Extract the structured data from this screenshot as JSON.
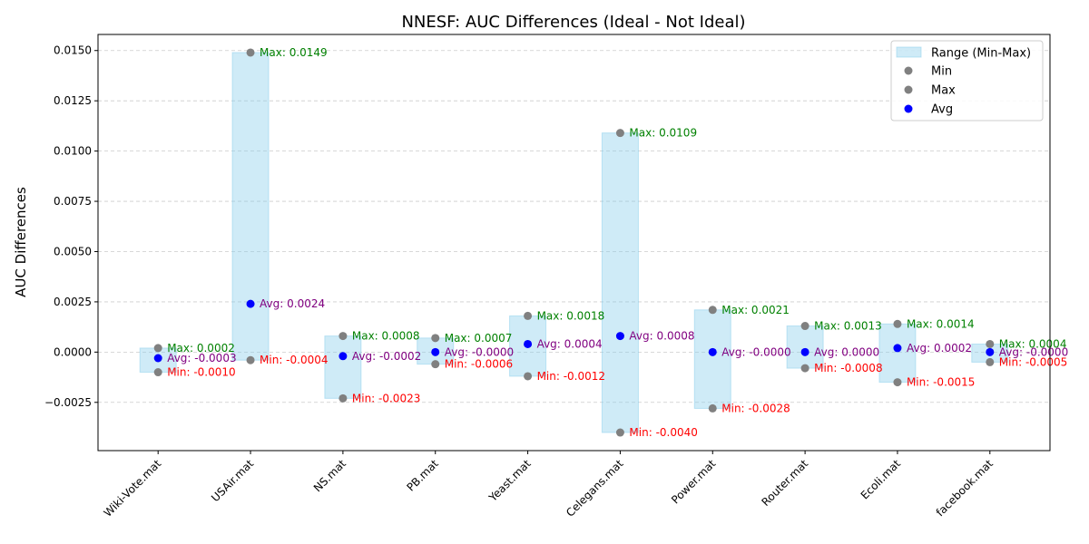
{
  "chart_data": {
    "type": "scatter",
    "title": "NNESF: AUC Differences (Ideal - Not Ideal)",
    "xlabel": "",
    "ylabel": "AUC Differences",
    "categories": [
      "Wiki-Vote.mat",
      "USAir.mat",
      "NS.mat",
      "PB.mat",
      "Yeast.mat",
      "Celegans.mat",
      "Power.mat",
      "Router.mat",
      "Ecoli.mat",
      "facebook.mat"
    ],
    "min": [
      -0.001,
      -0.0004,
      -0.0023,
      -0.0006,
      -0.0012,
      -0.004,
      -0.0028,
      -0.0008,
      -0.0015,
      -0.0005
    ],
    "max": [
      0.0002,
      0.0149,
      0.0008,
      0.0007,
      0.0018,
      0.0109,
      0.0021,
      0.0013,
      0.0014,
      0.0004
    ],
    "avg": [
      -0.0003,
      0.0024,
      -0.0002,
      -0.0,
      0.0004,
      0.0008,
      -0.0,
      0.0,
      0.0002,
      -0.0
    ],
    "min_labels": [
      "Min: -0.0010",
      "Min: -0.0004",
      "Min: -0.0023",
      "Min: -0.0006",
      "Min: -0.0012",
      "Min: -0.0040",
      "Min: -0.0028",
      "Min: -0.0008",
      "Min: -0.0015",
      "Min: -0.0005"
    ],
    "max_labels": [
      "Max: 0.0002",
      "Max: 0.0149",
      "Max: 0.0008",
      "Max: 0.0007",
      "Max: 0.0018",
      "Max: 0.0109",
      "Max: 0.0021",
      "Max: 0.0013",
      "Max: 0.0014",
      "Max: 0.0004"
    ],
    "avg_labels": [
      "Avg: -0.0003",
      "Avg: 0.0024",
      "Avg: -0.0002",
      "Avg: -0.0000",
      "Avg: 0.0004",
      "Avg: 0.0008",
      "Avg: -0.0000",
      "Avg: 0.0000",
      "Avg: 0.0002",
      "Avg: -0.0000"
    ],
    "ylim": [
      -0.0049,
      0.0158
    ],
    "yticks": [
      -0.0025,
      0.0,
      0.0025,
      0.005,
      0.0075,
      0.01,
      0.0125,
      0.015
    ],
    "ytick_labels": [
      "−0.0025",
      "0.0000",
      "0.0025",
      "0.0050",
      "0.0075",
      "0.0100",
      "0.0125",
      "0.0150"
    ],
    "grid": true,
    "legend_position": "top-right",
    "legend": [
      "Range (Min-Max)",
      "Min",
      "Max",
      "Avg"
    ],
    "colors": {
      "range_fill": "#87ceeb",
      "min_marker": "#808080",
      "max_marker": "#808080",
      "avg_marker": "#0000ff",
      "min_text": "#ff0000",
      "max_text": "#008000",
      "avg_text": "#800080"
    }
  }
}
